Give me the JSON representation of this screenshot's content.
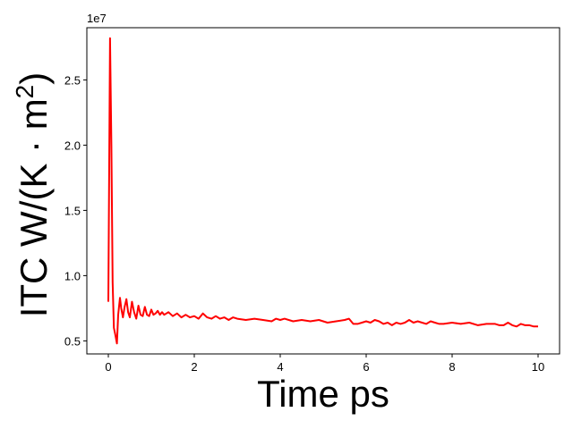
{
  "chart_data": {
    "type": "line",
    "xlabel": "Time ps",
    "ylabel": "ITC W/(K · m",
    "ylabel_superscript": "2",
    "ylabel_close": ")",
    "y_offset_label": "1e7",
    "y_scale_factor": 10000000,
    "xlim": [
      -0.5,
      10.5
    ],
    "ylim": [
      0.4,
      2.9
    ],
    "x_ticks": [
      0,
      2,
      4,
      6,
      8,
      10
    ],
    "x_tick_labels": [
      "0",
      "2",
      "4",
      "6",
      "8",
      "10"
    ],
    "y_ticks": [
      0.5,
      1.0,
      1.5,
      2.0,
      2.5
    ],
    "y_tick_labels": [
      "0.5",
      "1.0",
      "1.5",
      "2.0",
      "2.5"
    ],
    "grid": false,
    "series": [
      {
        "color": "#ff0000",
        "x": [
          0.0,
          0.04,
          0.07,
          0.1,
          0.13,
          0.16,
          0.2,
          0.23,
          0.27,
          0.3,
          0.34,
          0.38,
          0.42,
          0.46,
          0.5,
          0.55,
          0.6,
          0.65,
          0.7,
          0.75,
          0.8,
          0.85,
          0.9,
          0.95,
          1.0,
          1.05,
          1.1,
          1.15,
          1.2,
          1.25,
          1.3,
          1.35,
          1.4,
          1.5,
          1.6,
          1.7,
          1.8,
          1.9,
          2.0,
          2.1,
          2.2,
          2.3,
          2.4,
          2.5,
          2.6,
          2.7,
          2.8,
          2.9,
          3.0,
          3.2,
          3.4,
          3.6,
          3.8,
          3.9,
          4.0,
          4.1,
          4.3,
          4.5,
          4.7,
          4.9,
          5.1,
          5.3,
          5.5,
          5.6,
          5.7,
          5.8,
          5.9,
          6.0,
          6.1,
          6.2,
          6.3,
          6.4,
          6.5,
          6.6,
          6.7,
          6.8,
          6.9,
          7.0,
          7.1,
          7.2,
          7.3,
          7.4,
          7.5,
          7.6,
          7.7,
          7.8,
          8.0,
          8.2,
          8.4,
          8.6,
          8.8,
          9.0,
          9.1,
          9.2,
          9.3,
          9.4,
          9.5,
          9.6,
          9.7,
          9.8,
          9.9,
          10.0
        ],
        "y": [
          0.8,
          2.82,
          2.0,
          0.95,
          0.6,
          0.55,
          0.48,
          0.7,
          0.83,
          0.75,
          0.68,
          0.76,
          0.82,
          0.72,
          0.68,
          0.8,
          0.72,
          0.67,
          0.77,
          0.7,
          0.69,
          0.76,
          0.7,
          0.69,
          0.74,
          0.7,
          0.71,
          0.73,
          0.7,
          0.72,
          0.7,
          0.71,
          0.72,
          0.69,
          0.71,
          0.68,
          0.7,
          0.68,
          0.69,
          0.67,
          0.71,
          0.68,
          0.67,
          0.69,
          0.67,
          0.68,
          0.66,
          0.68,
          0.67,
          0.66,
          0.67,
          0.66,
          0.65,
          0.67,
          0.66,
          0.67,
          0.65,
          0.66,
          0.65,
          0.66,
          0.64,
          0.65,
          0.66,
          0.67,
          0.63,
          0.63,
          0.64,
          0.65,
          0.64,
          0.66,
          0.65,
          0.63,
          0.64,
          0.62,
          0.64,
          0.63,
          0.64,
          0.66,
          0.64,
          0.65,
          0.64,
          0.63,
          0.65,
          0.64,
          0.63,
          0.63,
          0.64,
          0.63,
          0.64,
          0.62,
          0.63,
          0.63,
          0.62,
          0.62,
          0.64,
          0.62,
          0.61,
          0.63,
          0.62,
          0.62,
          0.61,
          0.61
        ]
      }
    ]
  }
}
